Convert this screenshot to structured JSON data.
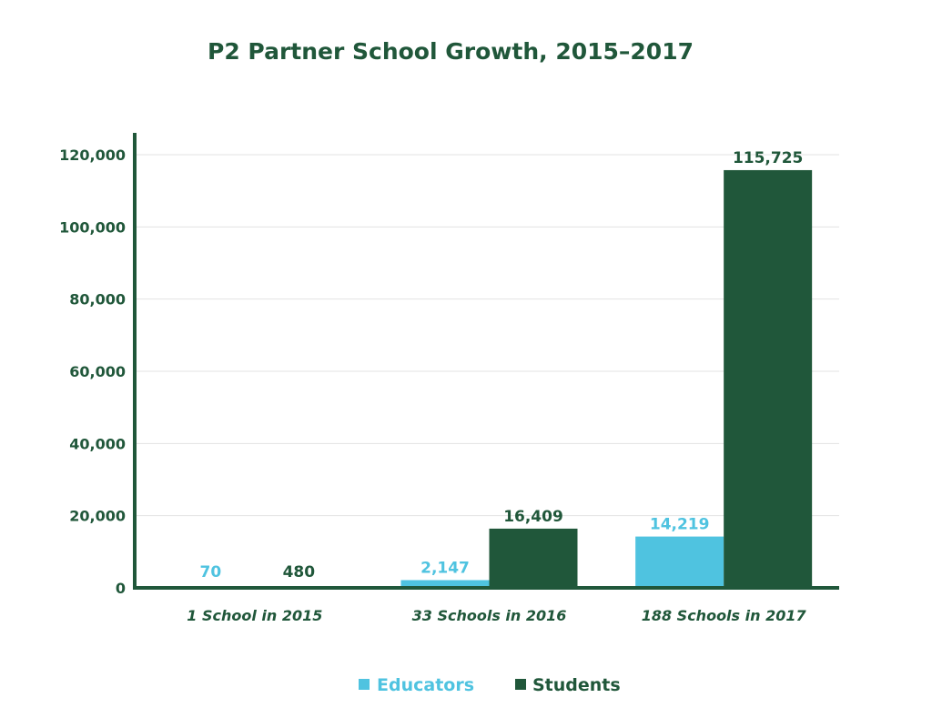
{
  "chart_data": {
    "type": "bar",
    "title": "P2 Partner School Growth, 2015–2017",
    "categories": [
      "1 School in 2015",
      "33 Schools in 2016",
      "188 Schools in 2017"
    ],
    "series": [
      {
        "name": "Educators",
        "values": [
          70,
          2147,
          14219
        ],
        "labels": [
          "70",
          "2,147",
          "14,219"
        ],
        "color": "#4fc3e0"
      },
      {
        "name": "Students",
        "values": [
          480,
          16409,
          115725
        ],
        "labels": [
          "480",
          "16,409",
          "115,725"
        ],
        "color": "#20573a"
      }
    ],
    "yticks": [
      {
        "value": 0,
        "label": "0"
      },
      {
        "value": 20000,
        "label": "20,000"
      },
      {
        "value": 40000,
        "label": "40,000"
      },
      {
        "value": 60000,
        "label": "60,000"
      },
      {
        "value": 80000,
        "label": "80,000"
      },
      {
        "value": 100000,
        "label": "100,000"
      },
      {
        "value": 120000,
        "label": "120,000"
      }
    ],
    "ylim": [
      0,
      120000
    ],
    "grid": true,
    "legend_position": "bottom-center",
    "axis_color": "#20573a",
    "grid_color": "#e3e3e3"
  }
}
